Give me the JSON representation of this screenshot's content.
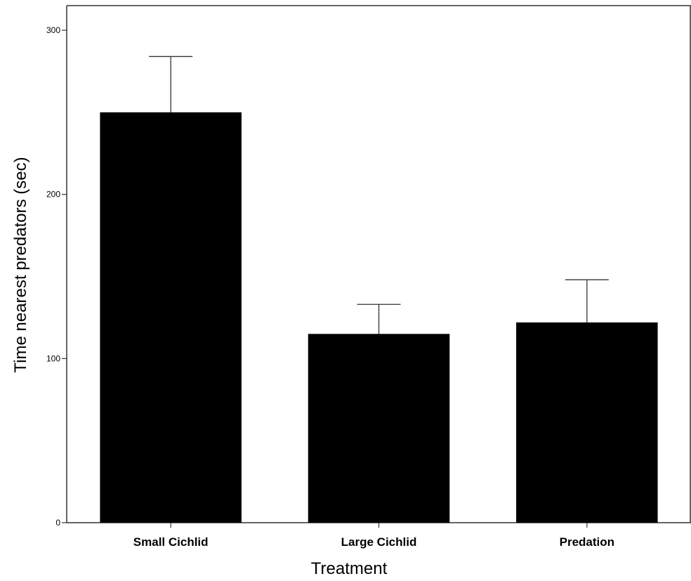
{
  "chart_data": {
    "type": "bar",
    "title": "",
    "xlabel": "Treatment",
    "ylabel": "Time nearest predators (sec)",
    "categories": [
      "Small Cichlid",
      "Large Cichlid",
      "Predation"
    ],
    "values": [
      250,
      115,
      122
    ],
    "error_upper": [
      284,
      133,
      148
    ],
    "ylim": [
      0,
      315
    ],
    "yticks": [
      0,
      100,
      200,
      300
    ],
    "grid": false,
    "legend": "none",
    "bar_color": "#000000"
  }
}
